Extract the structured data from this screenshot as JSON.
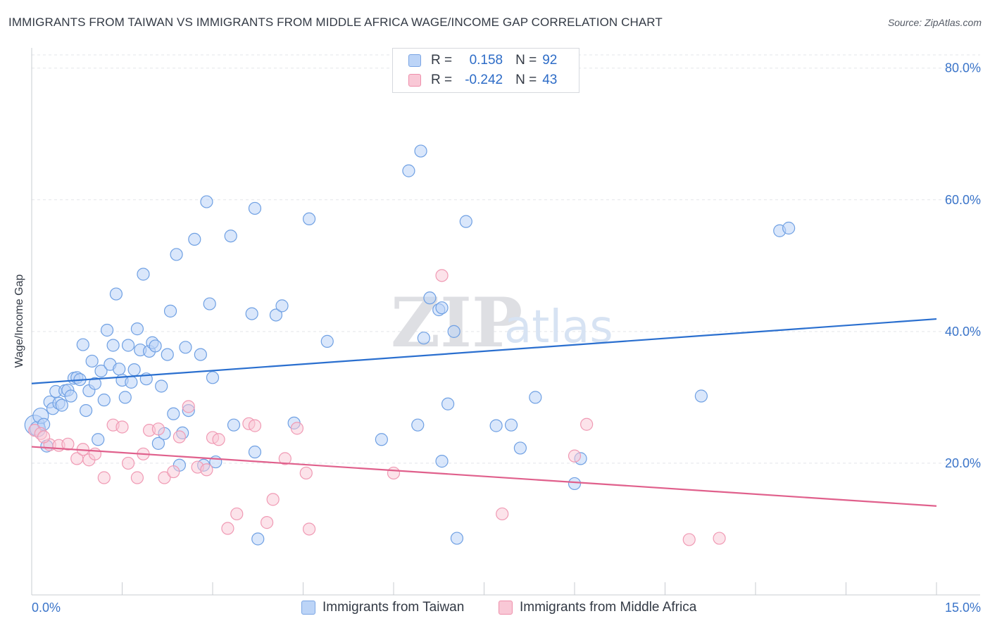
{
  "title": "IMMIGRANTS FROM TAIWAN VS IMMIGRANTS FROM MIDDLE AFRICA WAGE/INCOME GAP CORRELATION CHART",
  "source": "Source: ZipAtlas.com",
  "watermark": {
    "zip": "ZIP",
    "atlas": "atlas"
  },
  "legend": {
    "r_label": "R =",
    "n_label": "N =",
    "rows": [
      {
        "r": "0.158",
        "n": "92"
      },
      {
        "r": "-0.242",
        "n": "43"
      }
    ]
  },
  "colors": {
    "blue": "#6fa0e3",
    "blue_line": "#2a6fcf",
    "pink": "#f09ab4",
    "pink_line": "#e0608c",
    "tick_text": "#3a74c9"
  },
  "chart_data": {
    "type": "scatter",
    "title": "IMMIGRANTS FROM TAIWAN VS IMMIGRANTS FROM MIDDLE AFRICA WAGE/INCOME GAP CORRELATION CHART",
    "xlabel": "",
    "ylabel": "Wage/Income Gap",
    "xlim": [
      0,
      15
    ],
    "ylim": [
      0,
      82
    ],
    "x_tick_labels": [
      "0.0%",
      "15.0%"
    ],
    "y_ticks": [
      20,
      40,
      60,
      80
    ],
    "y_tick_labels": [
      "20.0%",
      "40.0%",
      "60.0%",
      "80.0%"
    ],
    "series": [
      {
        "name": "Immigrants from Taiwan",
        "r": 0.158,
        "n": 92,
        "trend": [
          [
            0,
            32.1
          ],
          [
            15,
            41.9
          ]
        ],
        "points": [
          [
            0.05,
            25.8
          ],
          [
            0.1,
            25.2
          ],
          [
            0.15,
            27.2
          ],
          [
            0.2,
            25.9
          ],
          [
            0.25,
            22.6
          ],
          [
            0.3,
            29.3
          ],
          [
            0.35,
            28.3
          ],
          [
            0.4,
            30.9
          ],
          [
            0.45,
            29.1
          ],
          [
            0.5,
            28.8
          ],
          [
            0.55,
            31.0
          ],
          [
            0.6,
            31.1
          ],
          [
            0.65,
            30.2
          ],
          [
            0.7,
            32.9
          ],
          [
            0.75,
            33.0
          ],
          [
            0.8,
            32.7
          ],
          [
            0.85,
            38.0
          ],
          [
            0.9,
            28.0
          ],
          [
            0.95,
            31.0
          ],
          [
            1.0,
            35.5
          ],
          [
            1.05,
            32.1
          ],
          [
            1.1,
            23.6
          ],
          [
            1.15,
            34.0
          ],
          [
            1.2,
            29.6
          ],
          [
            1.25,
            40.2
          ],
          [
            1.3,
            35.0
          ],
          [
            1.35,
            37.9
          ],
          [
            1.4,
            45.7
          ],
          [
            1.45,
            34.3
          ],
          [
            1.5,
            32.6
          ],
          [
            1.55,
            30.0
          ],
          [
            1.6,
            37.9
          ],
          [
            1.65,
            32.3
          ],
          [
            1.7,
            34.2
          ],
          [
            1.75,
            40.4
          ],
          [
            1.8,
            37.2
          ],
          [
            1.85,
            48.7
          ],
          [
            1.9,
            32.8
          ],
          [
            1.95,
            37.0
          ],
          [
            2.0,
            38.3
          ],
          [
            2.05,
            37.8
          ],
          [
            2.1,
            23.0
          ],
          [
            2.15,
            31.7
          ],
          [
            2.2,
            24.5
          ],
          [
            2.25,
            36.5
          ],
          [
            2.3,
            43.1
          ],
          [
            2.35,
            27.5
          ],
          [
            2.4,
            51.7
          ],
          [
            2.45,
            19.7
          ],
          [
            2.5,
            24.6
          ],
          [
            2.55,
            37.6
          ],
          [
            2.6,
            28.0
          ],
          [
            2.7,
            54.0
          ],
          [
            2.8,
            36.5
          ],
          [
            2.85,
            19.7
          ],
          [
            2.9,
            59.7
          ],
          [
            2.95,
            44.2
          ],
          [
            3.0,
            33.0
          ],
          [
            3.05,
            20.2
          ],
          [
            3.3,
            54.5
          ],
          [
            3.35,
            25.8
          ],
          [
            3.65,
            42.7
          ],
          [
            3.7,
            21.7
          ],
          [
            3.7,
            58.7
          ],
          [
            3.75,
            8.5
          ],
          [
            4.05,
            42.5
          ],
          [
            4.15,
            43.9
          ],
          [
            4.35,
            26.1
          ],
          [
            4.6,
            57.1
          ],
          [
            4.9,
            38.5
          ],
          [
            5.8,
            23.6
          ],
          [
            6.25,
            64.4
          ],
          [
            6.4,
            25.8
          ],
          [
            6.45,
            67.4
          ],
          [
            6.5,
            39.0
          ],
          [
            6.6,
            45.1
          ],
          [
            6.75,
            43.3
          ],
          [
            6.8,
            43.6
          ],
          [
            6.8,
            20.3
          ],
          [
            6.9,
            29.0
          ],
          [
            7.0,
            40.0
          ],
          [
            7.05,
            8.6
          ],
          [
            7.2,
            56.7
          ],
          [
            7.7,
            25.7
          ],
          [
            7.95,
            25.8
          ],
          [
            8.1,
            22.3
          ],
          [
            8.35,
            30.0
          ],
          [
            9.0,
            16.9
          ],
          [
            9.1,
            20.7
          ],
          [
            11.1,
            30.2
          ],
          [
            12.4,
            55.3
          ],
          [
            12.55,
            55.7
          ]
        ]
      },
      {
        "name": "Immigrants from Middle Africa",
        "r": -0.242,
        "n": 43,
        "trend": [
          [
            0,
            22.5
          ],
          [
            15,
            13.5
          ]
        ],
        "points": [
          [
            0.05,
            25.0
          ],
          [
            0.15,
            24.5
          ],
          [
            0.3,
            22.8
          ],
          [
            0.45,
            22.7
          ],
          [
            0.6,
            22.9
          ],
          [
            0.75,
            20.7
          ],
          [
            0.85,
            22.1
          ],
          [
            0.95,
            20.5
          ],
          [
            1.05,
            21.4
          ],
          [
            1.2,
            17.8
          ],
          [
            1.35,
            25.8
          ],
          [
            1.5,
            25.5
          ],
          [
            1.6,
            20.0
          ],
          [
            1.75,
            17.8
          ],
          [
            1.85,
            21.4
          ],
          [
            1.95,
            25.0
          ],
          [
            2.1,
            25.2
          ],
          [
            2.2,
            17.8
          ],
          [
            2.35,
            18.7
          ],
          [
            2.45,
            24.0
          ],
          [
            2.6,
            28.6
          ],
          [
            2.75,
            19.4
          ],
          [
            2.9,
            19.0
          ],
          [
            3.0,
            23.9
          ],
          [
            3.1,
            23.6
          ],
          [
            3.25,
            10.1
          ],
          [
            3.4,
            12.3
          ],
          [
            3.6,
            26.0
          ],
          [
            3.7,
            25.7
          ],
          [
            3.9,
            11.0
          ],
          [
            4.0,
            14.5
          ],
          [
            4.2,
            20.7
          ],
          [
            4.4,
            25.3
          ],
          [
            4.55,
            18.5
          ],
          [
            4.6,
            10.0
          ],
          [
            6.0,
            18.5
          ],
          [
            6.8,
            48.5
          ],
          [
            7.8,
            12.3
          ],
          [
            9.0,
            21.1
          ],
          [
            9.2,
            25.9
          ],
          [
            10.9,
            8.4
          ],
          [
            11.4,
            8.6
          ],
          [
            0.2,
            24.0
          ]
        ]
      }
    ]
  },
  "bottom_legend": [
    "Immigrants from Taiwan",
    "Immigrants from Middle Africa"
  ]
}
